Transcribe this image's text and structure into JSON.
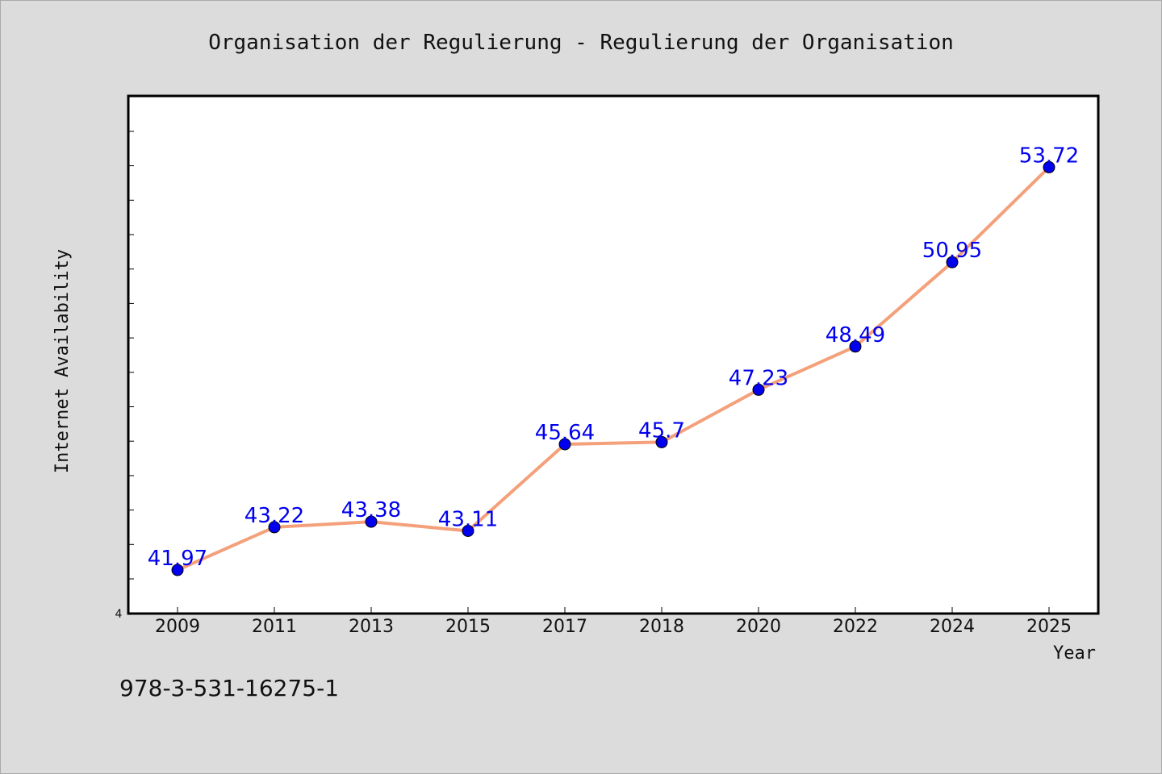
{
  "page": {
    "footer_text": "978-3-531-16275-1"
  },
  "chart_data": {
    "type": "line",
    "title": "Organisation der Regulierung - Regulierung der Organisation",
    "xlabel": "Year",
    "ylabel": "Internet Availability",
    "categories": [
      "2009",
      "2011",
      "2013",
      "2015",
      "2017",
      "2018",
      "2020",
      "2022",
      "2024",
      "2025"
    ],
    "series": [
      {
        "values": [
          41.97,
          43.22,
          43.38,
          43.11,
          45.64,
          45.7,
          47.23,
          48.49,
          50.95,
          53.72
        ],
        "data_labels": [
          "41.97",
          "43.22",
          "43.38",
          "43.11",
          "45.64",
          "45.7",
          "47.23",
          "48.49",
          "50.95",
          "53.72"
        ],
        "line_color": "#f4a07a",
        "marker_color": "#0000ee"
      }
    ],
    "ylim": [
      40.7,
      55.8
    ],
    "y_tick_label": "4",
    "grid": false,
    "legend": "none",
    "colors": {
      "background": "#dcdcdc",
      "plot_background": "#ffffff",
      "frame": "#000000",
      "data_label": "#0000ee"
    }
  }
}
